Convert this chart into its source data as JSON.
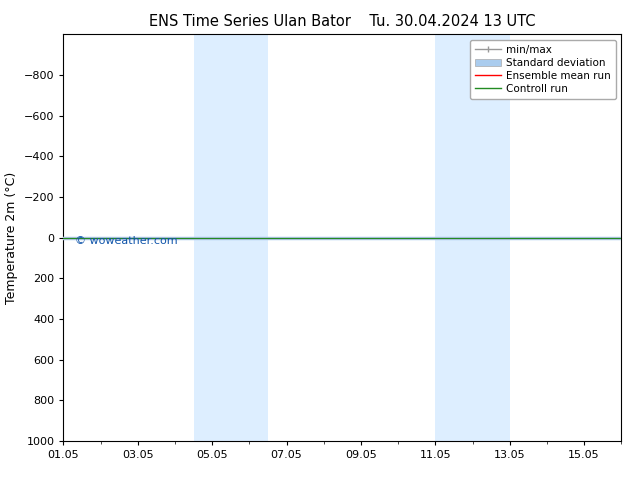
{
  "title_left": "ENS Time Series Ulan Bator",
  "title_right": "Tu. 30.04.2024 13 UTC",
  "ylabel": "Temperature 2m (°C)",
  "ylim_bottom": -1000,
  "ylim_top": 1000,
  "yticks": [
    -800,
    -600,
    -400,
    -200,
    0,
    200,
    400,
    600,
    800,
    1000
  ],
  "xtick_labels": [
    "01.05",
    "03.05",
    "05.05",
    "07.05",
    "09.05",
    "11.05",
    "13.05",
    "15.05"
  ],
  "xtick_positions": [
    0,
    2,
    4,
    6,
    8,
    10,
    12,
    14
  ],
  "xlim": [
    0,
    15
  ],
  "shade_bands": [
    {
      "x_start": 3.5,
      "x_end": 5.5
    },
    {
      "x_start": 10.0,
      "x_end": 12.0
    }
  ],
  "shade_color": "#ddeeff",
  "shade_alpha": 1.0,
  "control_run_y": 0,
  "control_run_color": "#228B22",
  "ensemble_mean_color": "#ff0000",
  "minmax_color": "#999999",
  "std_dev_color": "#aaccee",
  "watermark": "© woweather.com",
  "watermark_color": "#1155aa",
  "watermark_fontsize": 8,
  "bg_color": "#ffffff",
  "legend_fontsize": 7.5,
  "title_fontsize": 10.5,
  "tick_fontsize": 8
}
